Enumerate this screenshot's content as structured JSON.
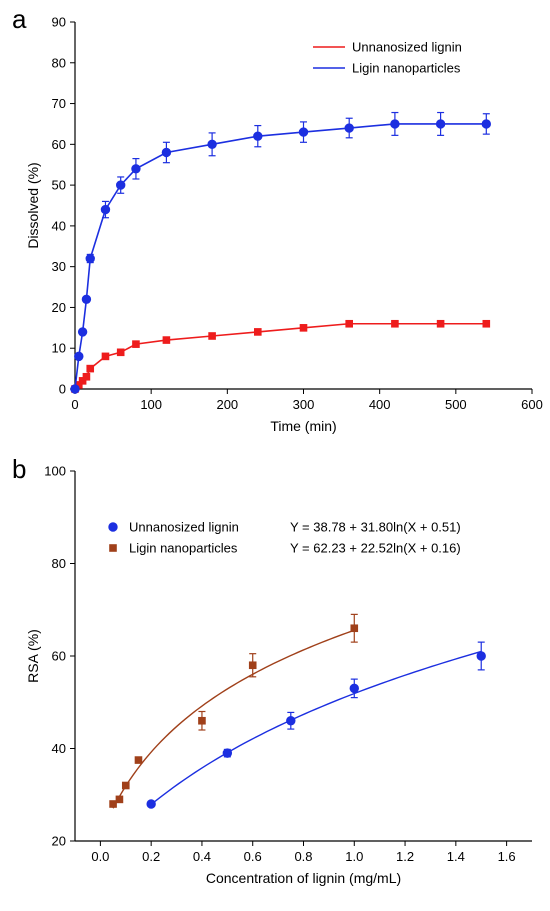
{
  "chart_data": [
    {
      "panel_label": "a",
      "type": "line",
      "xlabel": "Time (min)",
      "ylabel": "Dissolved (%)",
      "xlim": [
        0,
        600
      ],
      "ylim": [
        0,
        90
      ],
      "xticks": [
        0,
        100,
        200,
        300,
        400,
        500,
        600
      ],
      "yticks": [
        0,
        10,
        20,
        30,
        40,
        50,
        60,
        70,
        80,
        90
      ],
      "legend_position": "top-right",
      "grid": false,
      "series": [
        {
          "name": "Unnanosized lignin",
          "color": "#ee1c1c",
          "marker": "square",
          "x": [
            0,
            5,
            10,
            15,
            20,
            40,
            60,
            80,
            120,
            180,
            240,
            300,
            360,
            420,
            480,
            540
          ],
          "y": [
            0,
            1,
            2,
            3,
            5,
            8,
            9,
            11,
            12,
            13,
            14,
            15,
            16,
            16,
            16,
            16
          ],
          "error": []
        },
        {
          "name": "Ligin nanoparticles",
          "color": "#1c2fe0",
          "marker": "circle",
          "x": [
            0,
            5,
            10,
            15,
            20,
            40,
            60,
            80,
            120,
            180,
            240,
            300,
            360,
            420,
            480,
            540
          ],
          "y": [
            0,
            8,
            14,
            22,
            32,
            44,
            50,
            54,
            58,
            60,
            62,
            63,
            64,
            65,
            65,
            65
          ],
          "error": [
            0,
            0,
            0,
            0.5,
            1,
            2,
            2,
            2.5,
            2.5,
            2.8,
            2.6,
            2.5,
            2.4,
            2.8,
            2.8,
            2.5
          ]
        }
      ]
    },
    {
      "panel_label": "b",
      "type": "scatter",
      "xlabel": "Concentration of lignin (mg/mL)",
      "ylabel": "RSA (%)",
      "xlim": [
        -0.1,
        1.7
      ],
      "ylim": [
        20,
        100
      ],
      "xticks": [
        0.0,
        0.2,
        0.4,
        0.6,
        0.8,
        1.0,
        1.2,
        1.4,
        1.6
      ],
      "xtick_labels": [
        "0.0",
        "0.2",
        "0.4",
        "0.6",
        "0.8",
        "1.0",
        "1.2",
        "1.4",
        "1.6"
      ],
      "yticks": [
        20,
        40,
        60,
        80,
        100
      ],
      "legend_position": "top-left",
      "grid": false,
      "series": [
        {
          "name": "Unnanosized lignin",
          "color": "#1c2fe0",
          "marker": "circle",
          "equation": "Y = 38.78 + 31.80ln(X + 0.51)",
          "fit": {
            "a": 38.78,
            "b": 31.8,
            "c": 0.51,
            "from": 0.2,
            "to": 1.5
          },
          "x": [
            0.2,
            0.5,
            0.75,
            1.0,
            1.5
          ],
          "y": [
            28,
            39,
            46,
            53,
            60
          ],
          "error": [
            0.5,
            0.8,
            1.8,
            2.0,
            3.0
          ]
        },
        {
          "name": "Ligin nanoparticles",
          "color": "#a0401a",
          "marker": "square",
          "equation": "Y = 62.23 + 22.52ln(X + 0.16)",
          "fit": {
            "a": 62.23,
            "b": 22.52,
            "c": 0.16,
            "from": 0.05,
            "to": 1.0
          },
          "x": [
            0.05,
            0.075,
            0.1,
            0.15,
            0.4,
            0.6,
            1.0
          ],
          "y": [
            28,
            29,
            32,
            37.5,
            46,
            58,
            66
          ],
          "error": [
            0,
            0,
            0,
            0,
            2.0,
            2.5,
            3.0
          ]
        }
      ]
    }
  ]
}
